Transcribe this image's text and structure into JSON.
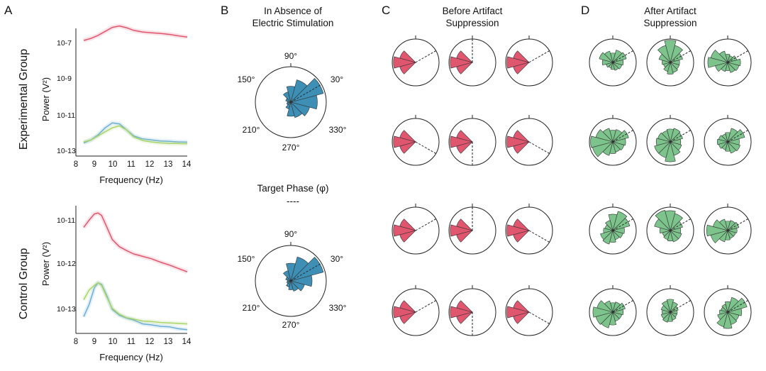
{
  "panels": {
    "A": {
      "label": "A",
      "top": {
        "group_label": "Experimental Group",
        "ylabel": "Power (V²)",
        "xlabel": "Frequency (Hz)",
        "yticks": [
          "10-7",
          "10-9",
          "10-11",
          "10-13"
        ]
      },
      "bottom": {
        "group_label": "Control Group",
        "ylabel": "Power (V²)",
        "xlabel": "Frequency (Hz)",
        "yticks": [
          "10-11",
          "10-12",
          "10-13"
        ]
      },
      "xticks": [
        "8",
        "9",
        "10",
        "11",
        "12",
        "13",
        "14"
      ]
    },
    "B": {
      "label": "B",
      "title_line1": "In Absence of",
      "title_line2": "Electric Stimulation",
      "target_phase_label": "Target Phase (φ)",
      "target_phase_marker": "----",
      "angle_labels": [
        "90°",
        "30°",
        "330°",
        "270°",
        "210°",
        "150°"
      ]
    },
    "C": {
      "label": "C",
      "title_line1": "Before Artifact",
      "title_line2": "Suppression"
    },
    "D": {
      "label": "D",
      "title_line1": "After Artifact",
      "title_line2": "Suppression"
    }
  },
  "colors": {
    "red": "#e0566f",
    "blue": "#3d8fb5",
    "green": "#7cc48c",
    "light_blue": "#6aaed6",
    "light_green": "#a9d46a"
  },
  "chart_data": [
    {
      "type": "line",
      "title": "Experimental Group",
      "xlabel": "Frequency (Hz)",
      "ylabel": "Power (V²)",
      "yscale": "log",
      "xlim": [
        8,
        14
      ],
      "ylim_log10": [
        -13,
        -7
      ],
      "x": [
        8.2,
        8.6,
        9.0,
        9.4,
        9.8,
        10.2,
        10.6,
        11.0,
        11.5,
        12.0,
        12.5,
        13.0,
        13.5,
        14.0
      ],
      "series": [
        {
          "color": "#e0566f",
          "log10_values": [
            -7.6,
            -7.5,
            -7.35,
            -7.15,
            -6.95,
            -6.88,
            -6.97,
            -7.1,
            -7.18,
            -7.22,
            -7.25,
            -7.3,
            -7.37,
            -7.43
          ]
        },
        {
          "color": "#6aaed6",
          "log10_values": [
            -12.7,
            -12.55,
            -12.3,
            -11.95,
            -11.7,
            -11.75,
            -12.05,
            -12.35,
            -12.5,
            -12.55,
            -12.6,
            -12.62,
            -12.65,
            -12.66
          ]
        },
        {
          "color": "#a9d46a",
          "log10_values": [
            -12.65,
            -12.55,
            -12.35,
            -12.15,
            -11.95,
            -11.85,
            -12.05,
            -12.4,
            -12.58,
            -12.65,
            -12.7,
            -12.72,
            -12.73,
            -12.74
          ]
        }
      ]
    },
    {
      "type": "line",
      "title": "Control Group",
      "xlabel": "Frequency (Hz)",
      "ylabel": "Power (V²)",
      "yscale": "log",
      "xlim": [
        8,
        14
      ],
      "ylim_log10": [
        -13.35,
        -10.85
      ],
      "x": [
        8.2,
        8.5,
        8.8,
        9.0,
        9.2,
        9.5,
        9.8,
        10.2,
        10.6,
        11.0,
        11.5,
        12.0,
        12.5,
        13.0,
        13.5,
        14.0
      ],
      "series": [
        {
          "color": "#e0566f",
          "log10_values": [
            -11.3,
            -11.15,
            -11.02,
            -11.0,
            -11.05,
            -11.3,
            -11.55,
            -11.7,
            -11.78,
            -11.85,
            -11.9,
            -11.95,
            -12.02,
            -12.08,
            -12.15,
            -12.22
          ]
        },
        {
          "color": "#6aaed6",
          "log10_values": [
            -13.15,
            -12.9,
            -12.55,
            -12.45,
            -12.48,
            -12.72,
            -13.0,
            -13.12,
            -13.18,
            -13.22,
            -13.3,
            -13.32,
            -13.35,
            -13.36,
            -13.4,
            -13.42
          ]
        },
        {
          "color": "#a9d46a",
          "log10_values": [
            -12.8,
            -12.6,
            -12.5,
            -12.45,
            -12.5,
            -12.75,
            -12.98,
            -13.1,
            -13.17,
            -13.2,
            -13.24,
            -13.25,
            -13.27,
            -13.28,
            -13.29,
            -13.3
          ]
        }
      ]
    },
    {
      "type": "polar-histogram",
      "title": "In Absence of Electric Stimulation (top)",
      "bin_width_deg": 30,
      "bins_deg": [
        0,
        30,
        60,
        90,
        120,
        150,
        180,
        210,
        240,
        270,
        300,
        330
      ],
      "values": [
        0.75,
        0.95,
        0.65,
        0.45,
        0.3,
        0.15,
        0.1,
        0.12,
        0.2,
        0.4,
        0.45,
        0.55
      ],
      "target_phase_deg": 30,
      "color": "#3d8fb5"
    },
    {
      "type": "polar-histogram",
      "title": "In Absence of Electric Stimulation (bottom)",
      "bin_width_deg": 30,
      "bins_deg": [
        0,
        30,
        60,
        90,
        120,
        150,
        180,
        210,
        240,
        270,
        300,
        330
      ],
      "values": [
        0.6,
        0.95,
        0.7,
        0.5,
        0.3,
        0.15,
        0.1,
        0.12,
        0.18,
        0.25,
        0.3,
        0.4
      ],
      "target_phase_deg": 30,
      "color": "#3d8fb5"
    },
    {
      "type": "polar-histogram-grid",
      "title": "Before Artifact Suppression",
      "rows": 4,
      "cols": 3,
      "bins_deg": [
        150,
        180,
        210
      ],
      "values": [
        0.7,
        0.95,
        0.7
      ],
      "target_phase_deg_per_row": [
        [
          30,
          90,
          30
        ],
        [
          -30,
          -90,
          -30
        ],
        [
          30,
          90,
          -30
        ],
        [
          30,
          -90,
          -30
        ]
      ],
      "color": "#e0566f"
    },
    {
      "type": "polar-histogram-grid",
      "title": "After Artifact Suppression",
      "rows": 4,
      "cols": 3,
      "bins_deg": [
        0,
        30,
        60,
        90,
        120,
        150,
        180,
        210,
        240,
        270,
        300,
        330
      ],
      "values": [
        [
          [
            0.45,
            0.6,
            0.55,
            0.4,
            0.5,
            0.6,
            0.45,
            0.3,
            0.25,
            0.3,
            0.35,
            0.4
          ],
          [
            0.4,
            0.55,
            0.75,
            0.95,
            0.75,
            0.5,
            0.35,
            0.3,
            0.4,
            0.5,
            0.45,
            0.4
          ],
          [
            0.55,
            0.4,
            0.3,
            0.35,
            0.5,
            0.75,
            0.85,
            0.55,
            0.4,
            0.35,
            0.45,
            0.5
          ]
        ],
        [
          [
            0.55,
            0.7,
            0.55,
            0.5,
            0.6,
            0.75,
            0.95,
            0.9,
            0.6,
            0.5,
            0.45,
            0.5
          ],
          [
            0.45,
            0.55,
            0.6,
            0.55,
            0.5,
            0.55,
            0.6,
            0.7,
            0.7,
            0.85,
            0.6,
            0.5
          ],
          [
            0.5,
            0.75,
            0.6,
            0.4,
            0.35,
            0.4,
            0.45,
            0.4,
            0.35,
            0.4,
            0.5,
            0.55
          ]
        ],
        [
          [
            0.5,
            0.75,
            0.85,
            0.7,
            0.45,
            0.35,
            0.4,
            0.55,
            0.6,
            0.5,
            0.4,
            0.45
          ],
          [
            0.45,
            0.55,
            0.75,
            0.85,
            0.9,
            0.7,
            0.45,
            0.35,
            0.4,
            0.45,
            0.5,
            0.5
          ],
          [
            0.4,
            0.5,
            0.45,
            0.4,
            0.5,
            0.65,
            0.9,
            0.75,
            0.5,
            0.4,
            0.35,
            0.35
          ]
        ],
        [
          [
            0.45,
            0.55,
            0.45,
            0.4,
            0.5,
            0.7,
            0.85,
            0.75,
            0.7,
            0.55,
            0.4,
            0.4
          ],
          [
            0.3,
            0.35,
            0.45,
            0.55,
            0.5,
            0.4,
            0.35,
            0.4,
            0.45,
            0.4,
            0.35,
            0.3
          ],
          [
            0.6,
            0.85,
            0.65,
            0.45,
            0.35,
            0.3,
            0.35,
            0.45,
            0.65,
            0.7,
            0.55,
            0.5
          ]
        ]
      ],
      "target_phase_deg": 30,
      "color": "#7cc48c"
    }
  ]
}
